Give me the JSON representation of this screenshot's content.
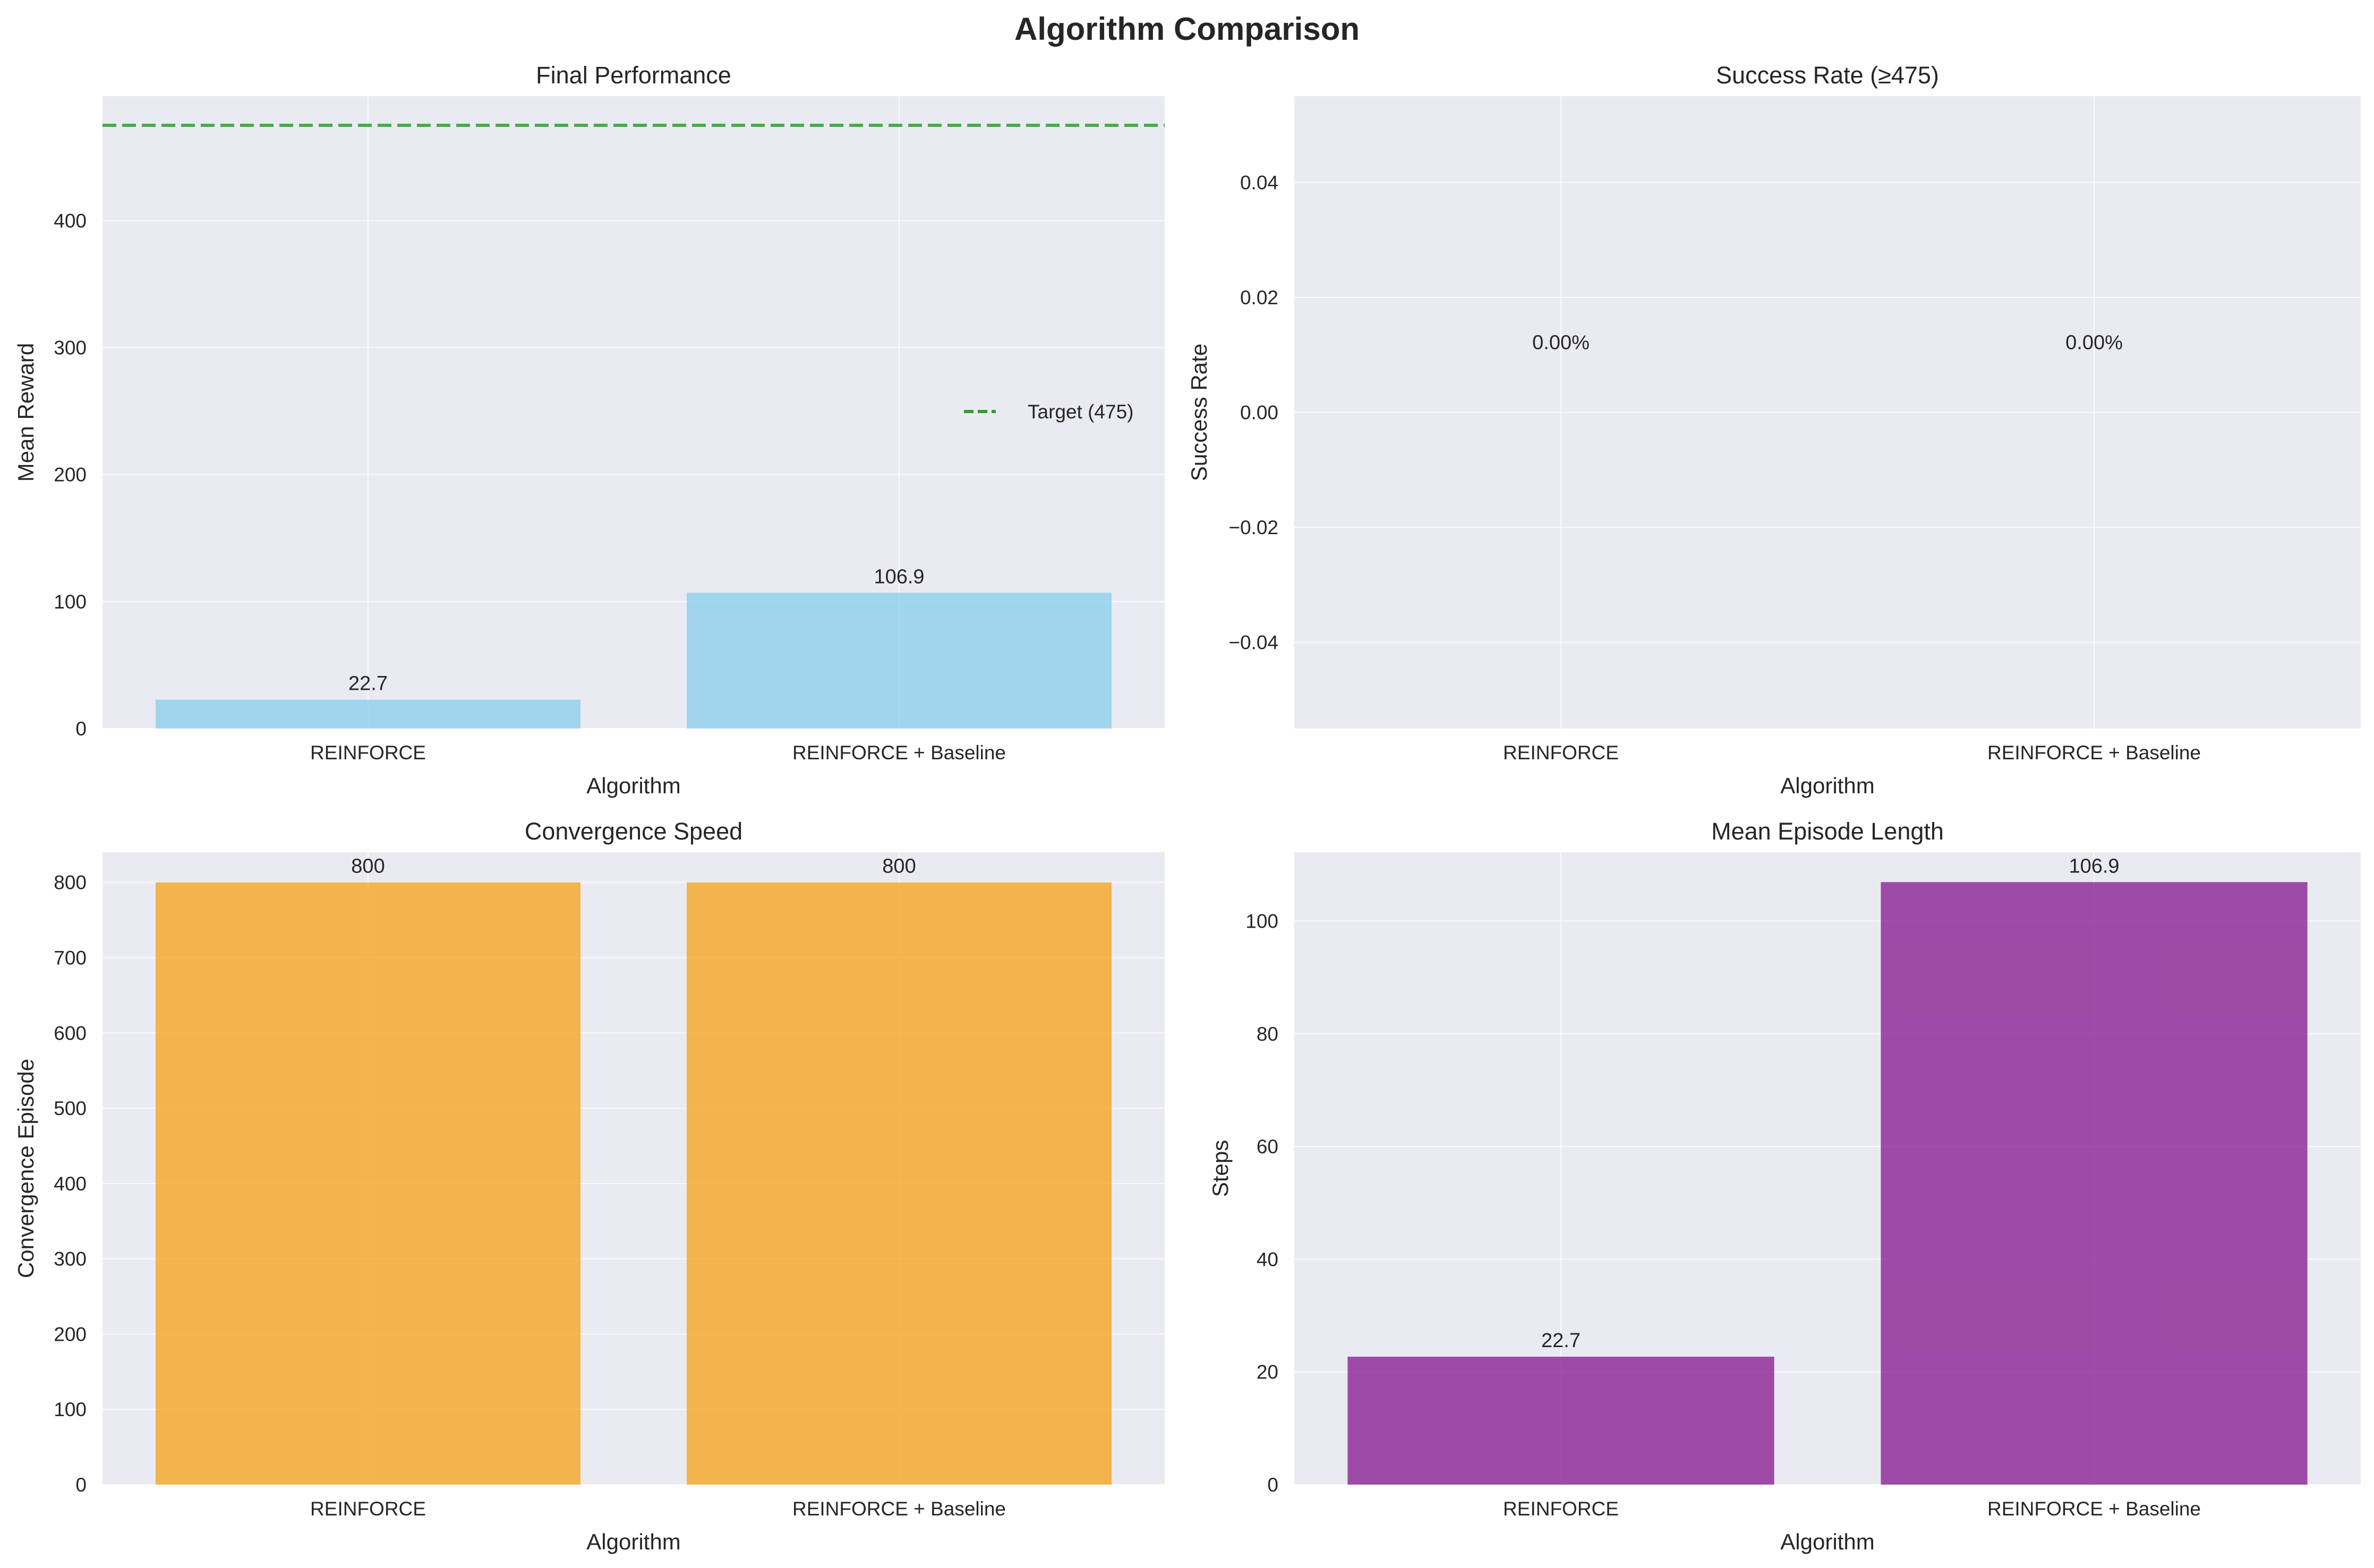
{
  "suptitle": "Algorithm Comparison",
  "colors": {
    "panel_bg": "#eaeaf2",
    "grid": "#ffffff",
    "performance_bar": "#87ceeb",
    "convergence_bar": "#f5a623",
    "episode_length_bar": "#8b2393",
    "target_line": "#2ca02c"
  },
  "chart_data": [
    {
      "type": "bar",
      "title": "Final Performance",
      "xlabel": "Algorithm",
      "ylabel": "Mean Reward",
      "categories": [
        "REINFORCE",
        "REINFORCE + Baseline"
      ],
      "values": [
        22.7,
        106.9
      ],
      "value_labels": [
        "22.7",
        "106.9"
      ],
      "ylim": [
        0,
        498
      ],
      "yticks": [
        0,
        100,
        200,
        300,
        400
      ],
      "reference_line": {
        "value": 475,
        "label": "Target (475)",
        "style": "dashed"
      },
      "legend": {
        "position": "center-right",
        "entries": [
          "Target (475)"
        ]
      },
      "grid": true
    },
    {
      "type": "bar",
      "title": "Success Rate (≥475)",
      "xlabel": "Algorithm",
      "ylabel": "Success Rate",
      "categories": [
        "REINFORCE",
        "REINFORCE + Baseline"
      ],
      "values": [
        0,
        0
      ],
      "value_labels": [
        "0.00%",
        "0.00%"
      ],
      "ylim": [
        -0.055,
        0.055
      ],
      "yticks": [
        -0.04,
        -0.02,
        0.0,
        0.02,
        0.04
      ],
      "ytick_labels": [
        "−0.04",
        "−0.02",
        "0.00",
        "0.02",
        "0.04"
      ],
      "grid": true
    },
    {
      "type": "bar",
      "title": "Convergence Speed",
      "xlabel": "Algorithm",
      "ylabel": "Convergence Episode",
      "categories": [
        "REINFORCE",
        "REINFORCE + Baseline"
      ],
      "values": [
        800,
        800
      ],
      "value_labels": [
        "800",
        "800"
      ],
      "ylim": [
        0,
        840
      ],
      "yticks": [
        0,
        100,
        200,
        300,
        400,
        500,
        600,
        700,
        800
      ],
      "grid": true
    },
    {
      "type": "bar",
      "title": "Mean Episode Length",
      "xlabel": "Algorithm",
      "ylabel": "Steps",
      "categories": [
        "REINFORCE",
        "REINFORCE + Baseline"
      ],
      "values": [
        22.7,
        106.9
      ],
      "value_labels": [
        "22.7",
        "106.9"
      ],
      "ylim": [
        0,
        112.2
      ],
      "yticks": [
        0,
        20,
        40,
        60,
        80,
        100
      ],
      "grid": true
    }
  ]
}
